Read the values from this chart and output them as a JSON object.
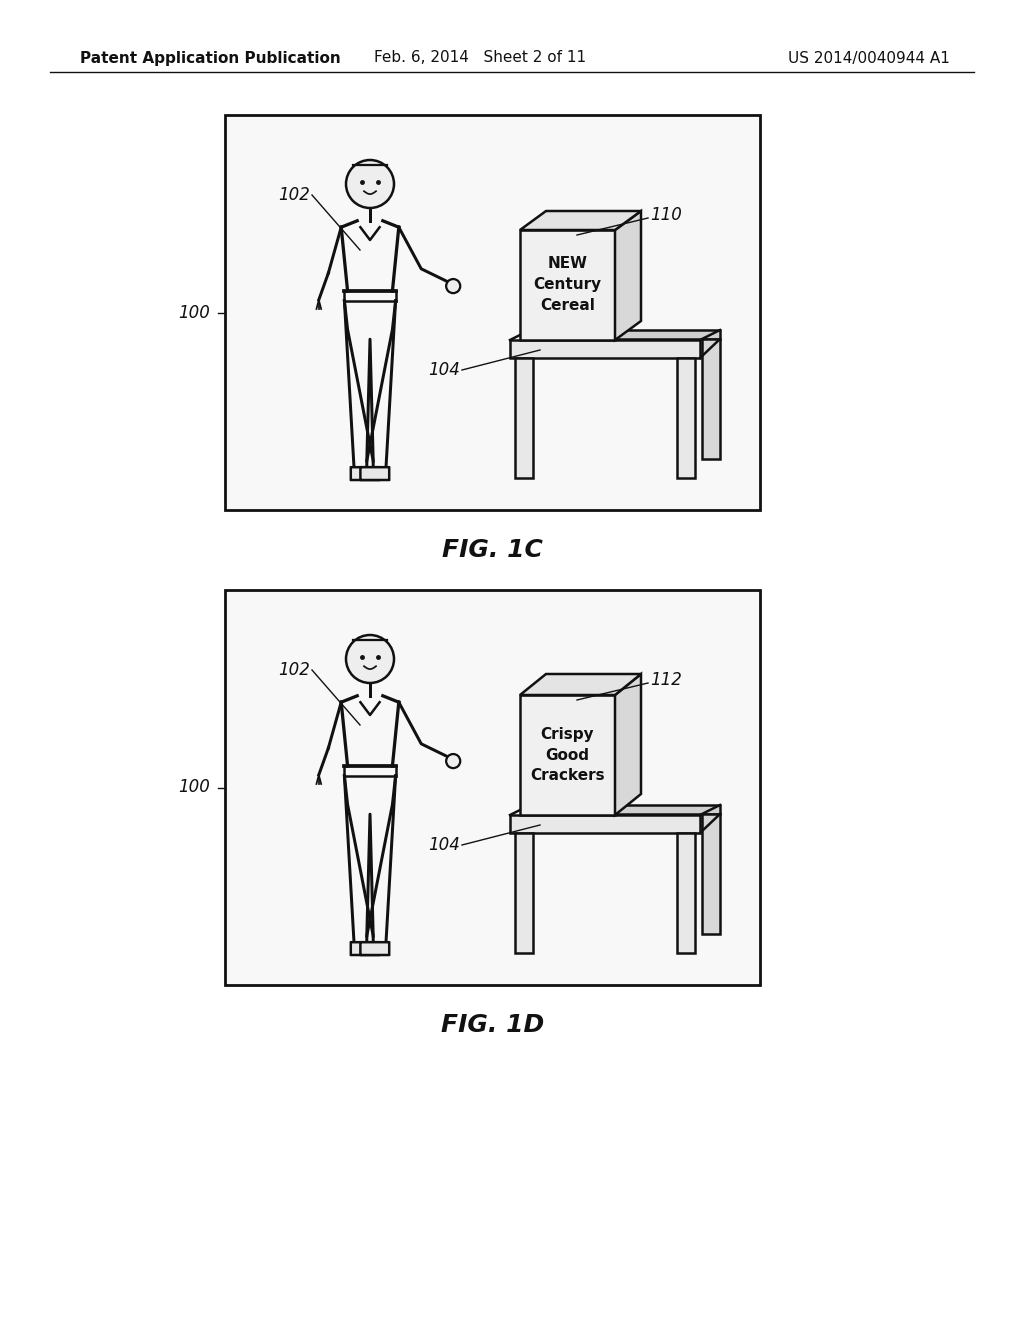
{
  "bg_color": "#ffffff",
  "header_left": "Patent Application Publication",
  "header_center": "Feb. 6, 2014   Sheet 2 of 11",
  "header_right": "US 2014/0040944 A1",
  "fig1c_label": "FIG. 1C",
  "fig1d_label": "FIG. 1D",
  "box1_text": "NEW\nCentury\nCereal",
  "box2_text": "Crispy\nGood\nCrackers",
  "lc": "#111111",
  "fc_light": "#f0f0f0",
  "fc_panel": "#f5f5f5"
}
